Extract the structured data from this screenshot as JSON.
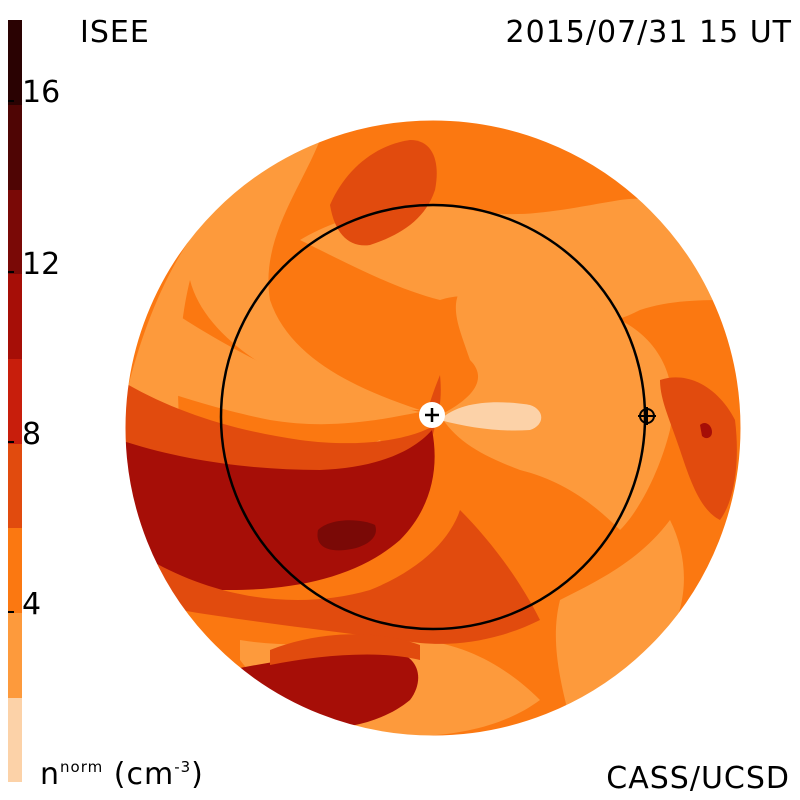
{
  "header": {
    "org": "ISEE",
    "datetime": "2015/07/31 15 UT"
  },
  "footer": {
    "credit": "CASS/UCSD",
    "unit_base": "n",
    "unit_sup": "norm",
    "unit_paren": "(cm",
    "unit_exp": "-3",
    "unit_close": ")"
  },
  "colorbar": {
    "tick_labels": [
      "16",
      "12",
      "8",
      "4"
    ],
    "tick_values": [
      16,
      12,
      8,
      4
    ],
    "range": [
      0,
      18
    ],
    "levels": [
      {
        "from": 0,
        "to": 2,
        "color": "#fcd2a8"
      },
      {
        "from": 2,
        "to": 4,
        "color": "#fd9a3c"
      },
      {
        "from": 4,
        "to": 6,
        "color": "#fb7811"
      },
      {
        "from": 6,
        "to": 8,
        "color": "#e14b0e"
      },
      {
        "from": 8,
        "to": 10,
        "color": "#c81e0c"
      },
      {
        "from": 10,
        "to": 12,
        "color": "#a60e07"
      },
      {
        "from": 12,
        "to": 14,
        "color": "#7a0906"
      },
      {
        "from": 14,
        "to": 16,
        "color": "#4f0504"
      },
      {
        "from": 16,
        "to": 18,
        "color": "#2a0202"
      }
    ]
  },
  "map": {
    "sun_marker": "sun-plus-icon",
    "earth_marker": "earth-crosshair-icon",
    "orbit": "earth-orbit-circle"
  }
}
